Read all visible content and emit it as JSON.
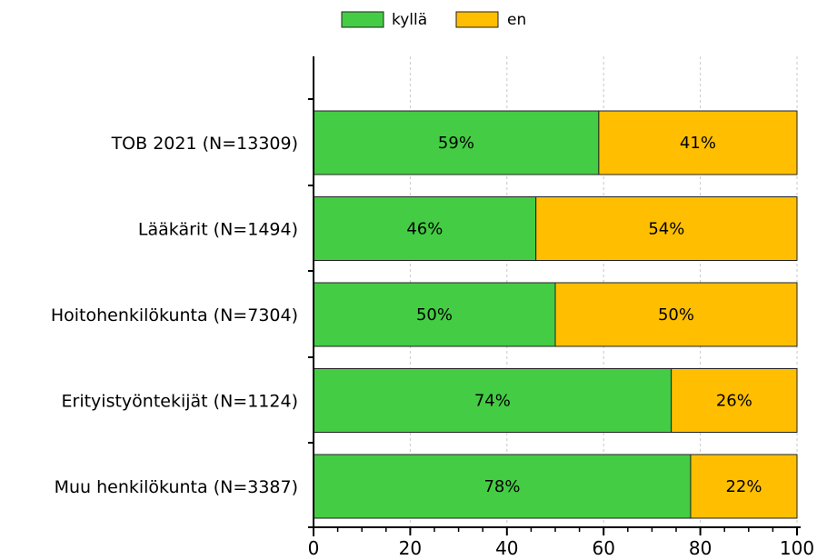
{
  "chart_data": {
    "type": "bar",
    "orientation": "horizontal",
    "stacked": true,
    "categories": [
      "TOB 2021 (N=13309)",
      "Lääkärit (N=1494)",
      "Hoitohenkilökunta (N=7304)",
      "Erityistyöntekijät (N=1124)",
      "Muu henkilökunta (N=3387)"
    ],
    "series": [
      {
        "name": "kyllä",
        "color": "#44cc44",
        "values": [
          59,
          46,
          50,
          74,
          78
        ],
        "labels": [
          "59%",
          "46%",
          "50%",
          "74%",
          "78%"
        ]
      },
      {
        "name": "en",
        "color": "#ffbf00",
        "values": [
          41,
          54,
          50,
          26,
          22
        ],
        "labels": [
          "41%",
          "54%",
          "50%",
          "26%",
          "22%"
        ]
      }
    ],
    "xlim": [
      0,
      100
    ],
    "xticks": [
      "0",
      "20",
      "40",
      "60",
      "80",
      "100"
    ],
    "grid": true,
    "legend_position": "top-center",
    "title": "",
    "xlabel": "",
    "ylabel": ""
  }
}
